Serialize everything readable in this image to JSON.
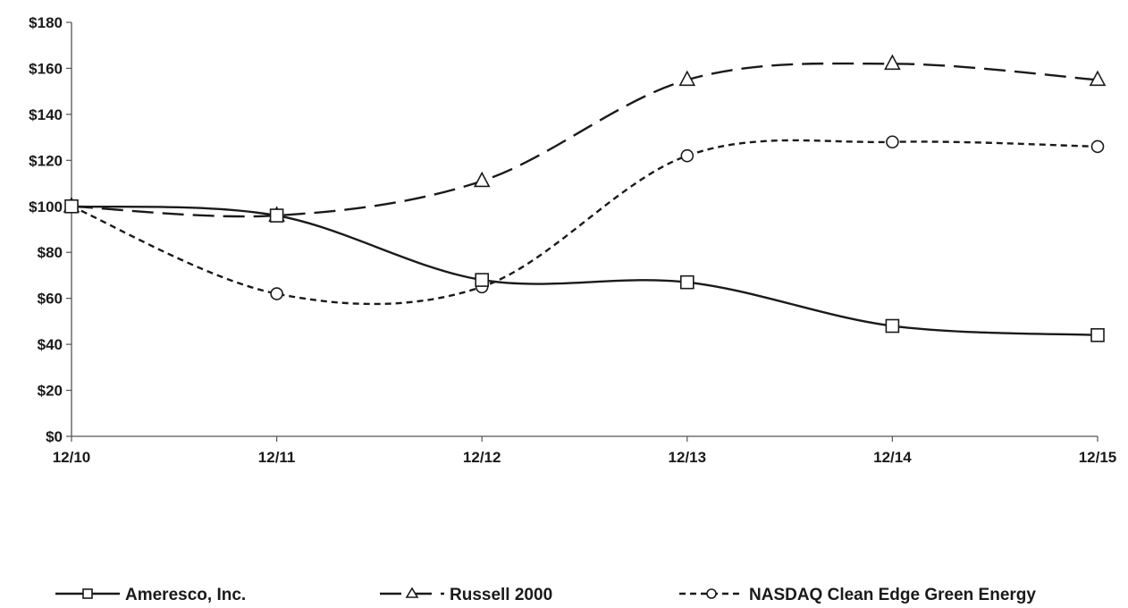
{
  "chart_data": {
    "type": "line",
    "title": "",
    "xlabel": "",
    "ylabel": "",
    "categories": [
      "12/10",
      "12/11",
      "12/12",
      "12/13",
      "12/14",
      "12/15"
    ],
    "y_ticks": [
      "$0",
      "$20",
      "$40",
      "$60",
      "$80",
      "$100",
      "$120",
      "$140",
      "$160",
      "$180"
    ],
    "ylim": [
      0,
      180
    ],
    "grid": false,
    "legend_position": "bottom",
    "series": [
      {
        "name": "Ameresco, Inc.",
        "values": [
          100,
          96,
          68,
          67,
          48,
          44
        ],
        "marker": "square",
        "line_style": "solid",
        "color": "#1a1a1a"
      },
      {
        "name": "Russell 2000",
        "values": [
          100,
          96,
          111,
          155,
          162,
          155
        ],
        "marker": "triangle",
        "line_style": "long-dash",
        "color": "#1a1a1a"
      },
      {
        "name": "NASDAQ Clean Edge Green Energy",
        "values": [
          100,
          62,
          65,
          122,
          128,
          126
        ],
        "marker": "circle",
        "line_style": "short-dash",
        "color": "#1a1a1a"
      }
    ]
  }
}
